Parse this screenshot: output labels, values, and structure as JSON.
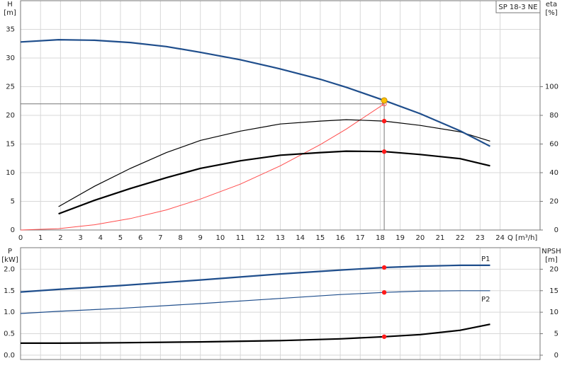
{
  "chart_data": [
    {
      "type": "line",
      "annotation": "SP 18-3 NE",
      "ylabel": "H",
      "yunit": "[m]",
      "y2label": "eta",
      "y2unit": "[%]",
      "xlabel": "Q [m³/h]",
      "x": [
        0,
        1.9,
        3.7,
        5.5,
        7.3,
        9,
        11,
        13,
        15,
        16.3,
        18.2,
        20,
        22,
        23.5
      ],
      "xlim": [
        0,
        26
      ],
      "xticks": [
        0,
        1,
        2,
        3,
        4,
        5,
        6,
        7,
        8,
        9,
        10,
        11,
        12,
        13,
        14,
        15,
        16,
        17,
        18,
        19,
        20,
        21,
        22,
        23,
        24
      ],
      "show_xtick_labels": true,
      "ylim": [
        0,
        40
      ],
      "yticks": [
        0,
        5,
        10,
        15,
        20,
        25,
        30,
        35
      ],
      "y2lim": [
        0,
        160
      ],
      "y2ticks": [
        0,
        20,
        40,
        60,
        80,
        100
      ],
      "grid": true,
      "markers_at": 18.2,
      "series": [
        {
          "color": "#ff4d4d",
          "width": 1,
          "values": [
            0,
            0.24,
            0.91,
            2.0,
            3.5,
            5.4,
            8.0,
            11.2,
            14.9,
            17.6,
            22,
            null,
            null,
            null
          ]
        },
        {
          "color": "#000000",
          "width": 1.2,
          "axis": "y2",
          "values": [
            null,
            16.3,
            30.5,
            43,
            54,
            62.5,
            69,
            74,
            76,
            77,
            76,
            73,
            68.5,
            62
          ]
        },
        {
          "color": "#000000",
          "width": 2.2,
          "axis": "y2",
          "values": [
            null,
            11.3,
            20.7,
            29,
            36.5,
            43,
            48.3,
            52.2,
            54,
            55,
            54.7,
            52.7,
            49.8,
            44.8
          ]
        },
        {
          "color": "#1f4e8c",
          "width": 2.2,
          "values": [
            32.8,
            33.2,
            33.1,
            32.7,
            32,
            31,
            29.7,
            28.1,
            26.3,
            24.9,
            22.6,
            20.3,
            17.3,
            14.6
          ]
        }
      ]
    },
    {
      "type": "line",
      "ylabel": "P",
      "yunit": "[kW]",
      "y2label": "NPSH",
      "y2unit": "[m]",
      "x": [
        0,
        1.9,
        5,
        9,
        13,
        16,
        18.2,
        20,
        22,
        23.5
      ],
      "xlim": [
        0,
        26
      ],
      "xticks": [
        0,
        1,
        2,
        3,
        4,
        5,
        6,
        7,
        8,
        9,
        10,
        11,
        12,
        13,
        14,
        15,
        16,
        17,
        18,
        19,
        20,
        21,
        22,
        23,
        24
      ],
      "show_xtick_labels": false,
      "ylim": [
        -0.1,
        2.5
      ],
      "yticks": [
        {
          "value": 0,
          "label": "0.0"
        },
        {
          "value": 0.5,
          "label": "0.5"
        },
        {
          "value": 1,
          "label": "1.0"
        },
        {
          "value": 1.5,
          "label": "1.5"
        },
        {
          "value": 2,
          "label": "2.0"
        }
      ],
      "y2lim": [
        -1,
        25
      ],
      "y2ticks": [
        0,
        5,
        10,
        15,
        20
      ],
      "grid": true,
      "markers_at": 18.2,
      "series": [
        {
          "name": "P1",
          "color": "#1f4e8c",
          "width": 2.2,
          "values": [
            1.47,
            1.53,
            1.62,
            1.75,
            1.89,
            1.98,
            2.04,
            2.07,
            2.09,
            2.09
          ]
        },
        {
          "name": "P2",
          "color": "#1f4e8c",
          "width": 1.2,
          "values": [
            0.97,
            1.02,
            1.09,
            1.2,
            1.32,
            1.41,
            1.46,
            1.49,
            1.5,
            1.5
          ]
        },
        {
          "color": "#000000",
          "width": 2.2,
          "axis": "y2",
          "values": [
            2.8,
            2.8,
            2.9,
            3.1,
            3.4,
            3.8,
            4.3,
            4.8,
            5.8,
            7.2
          ]
        }
      ]
    }
  ]
}
